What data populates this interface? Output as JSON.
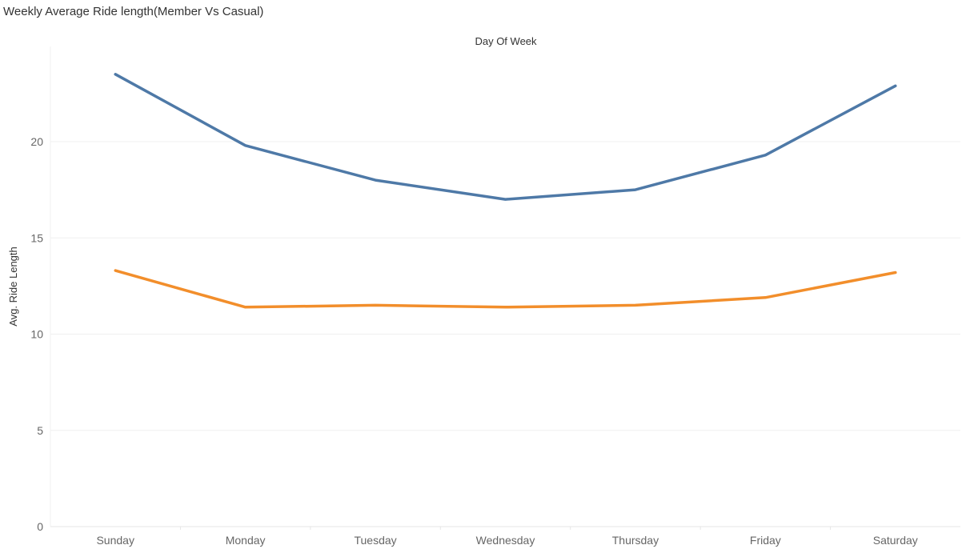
{
  "chart_data": {
    "type": "line",
    "title": "Weekly Average Ride length(Member Vs Casual)",
    "top_axis_title": "Day Of Week",
    "ylabel": "Avg. Ride Length",
    "categories": [
      "Sunday",
      "Monday",
      "Tuesday",
      "Wednesday",
      "Thursday",
      "Friday",
      "Saturday"
    ],
    "ylim": [
      0,
      24.5
    ],
    "yticks": [
      0,
      5,
      10,
      15,
      20
    ],
    "grid": true,
    "legend": "none",
    "series": [
      {
        "color": "#4e79a7",
        "values": [
          23.5,
          19.8,
          18.0,
          17.0,
          17.5,
          19.3,
          22.9
        ]
      },
      {
        "color": "#f28e2b",
        "values": [
          13.3,
          11.4,
          11.5,
          11.4,
          11.5,
          11.9,
          13.2
        ]
      }
    ]
  }
}
